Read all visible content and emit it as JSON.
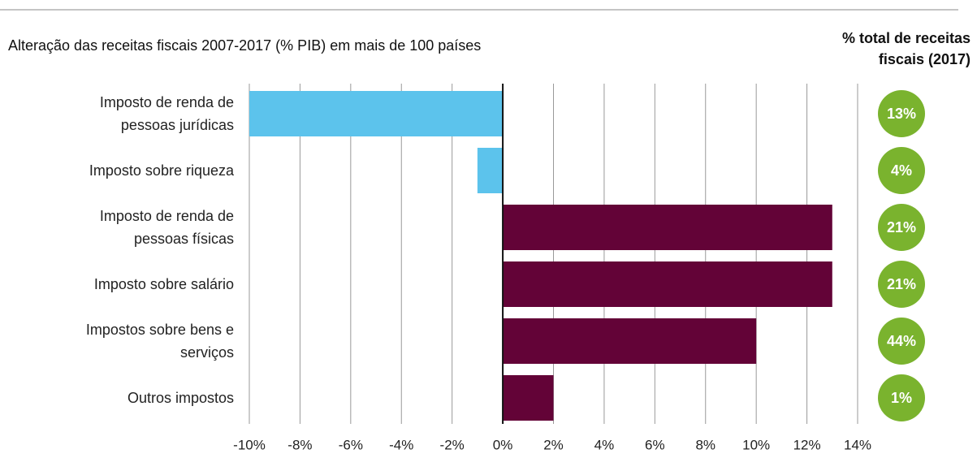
{
  "chart_data": {
    "type": "bar",
    "orientation": "horizontal",
    "title": "Alteração das receitas fiscais 2007-2017 (% PIB) em mais de 100 países",
    "categories": [
      "Imposto de renda de pessoas jurídicas",
      "Imposto sobre riqueza",
      "Imposto de renda de pessoas físicas",
      "Imposto sobre salário",
      "Impostos sobre bens e serviços",
      "Outros impostos"
    ],
    "values": [
      -10,
      -1,
      13,
      13,
      10,
      2
    ],
    "colors": [
      "#5cc3ec",
      "#5cc3ec",
      "#630337",
      "#630337",
      "#630337",
      "#630337"
    ],
    "xlim": [
      -10,
      14
    ],
    "xticks": [
      {
        "value": -10,
        "label": "-10%"
      },
      {
        "value": -8,
        "label": "-8%"
      },
      {
        "value": -6,
        "label": "-6%"
      },
      {
        "value": -4,
        "label": "-4%"
      },
      {
        "value": -2,
        "label": "-2%"
      },
      {
        "value": 0,
        "label": "0%"
      },
      {
        "value": 2,
        "label": "2%"
      },
      {
        "value": 4,
        "label": "4%"
      },
      {
        "value": 6,
        "label": "6%"
      },
      {
        "value": 8,
        "label": "8%"
      },
      {
        "value": 10,
        "label": "10%"
      },
      {
        "value": 12,
        "label": "12%"
      },
      {
        "value": 14,
        "label": "14%"
      }
    ],
    "grid": true,
    "share": {
      "title": "% total de receitas fiscais (2017)",
      "values": [
        13,
        4,
        21,
        21,
        44,
        1
      ],
      "value_labels": [
        "13%",
        "4%",
        "21%",
        "21%",
        "44%",
        "1%"
      ],
      "color": "#7ab32e"
    }
  }
}
